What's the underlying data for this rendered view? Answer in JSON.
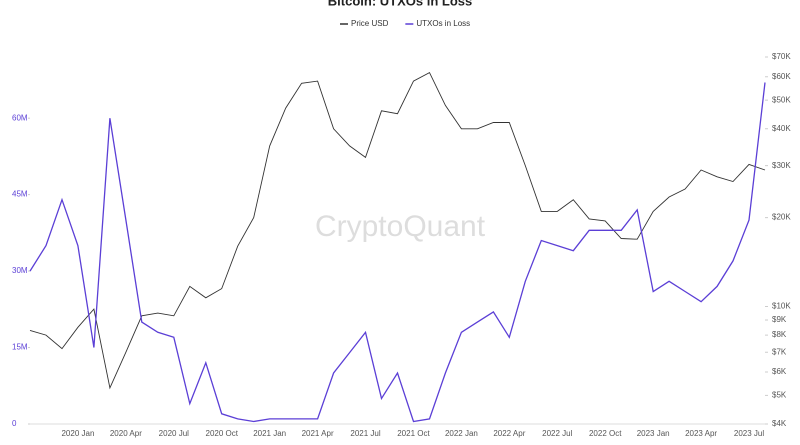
{
  "chart_data": {
    "type": "line",
    "title": "Bitcoin: UTXOs in Loss",
    "watermark": "CryptoQuant",
    "categories": [
      null,
      null,
      null,
      "2020 Jan",
      null,
      null,
      "2020 Apr",
      null,
      null,
      "2020 Jul",
      null,
      null,
      "2020 Oct",
      null,
      null,
      "2021 Jan",
      null,
      null,
      "2021 Apr",
      null,
      null,
      "2021 Jul",
      null,
      null,
      "2021 Oct",
      null,
      null,
      "2022 Jan",
      null,
      null,
      "2022 Apr",
      null,
      null,
      "2022 Jul",
      null,
      null,
      "2022 Oct",
      null,
      null,
      "2023 Jan",
      null,
      null,
      "2023 Apr",
      null,
      null,
      "2023 Jul",
      null
    ],
    "series": [
      {
        "name": "Price USD",
        "color": "#333333",
        "axis": "y2",
        "values": [
          8300,
          8000,
          7200,
          8500,
          9800,
          5300,
          7000,
          9300,
          9500,
          9300,
          11700,
          10700,
          11500,
          16000,
          20000,
          35000,
          47000,
          57000,
          58000,
          40000,
          35000,
          32000,
          46000,
          45000,
          58000,
          62000,
          48000,
          40000,
          40000,
          42000,
          42000,
          30000,
          21000,
          21000,
          23000,
          19800,
          19500,
          17000,
          16900,
          21000,
          23500,
          25000,
          29000,
          27500,
          26500,
          30300,
          29000
        ]
      },
      {
        "name": "UTXOs in Loss",
        "color": "#5b3fd6",
        "values": [
          30000000,
          35000000,
          44000000,
          35000000,
          15000000,
          60000000,
          40000000,
          20000000,
          18000000,
          17000000,
          4000000,
          12000000,
          2000000,
          1000000,
          500000,
          1000000,
          1000000,
          1000000,
          1000000,
          10000000,
          14000000,
          18000000,
          5000000,
          10000000,
          500000,
          1000000,
          10000000,
          18000000,
          20000000,
          22000000,
          17000000,
          28000000,
          36000000,
          35000000,
          34000000,
          38000000,
          38000000,
          38000000,
          42000000,
          26000000,
          28000000,
          26000000,
          24000000,
          27000000,
          32000000,
          40000000,
          67000000
        ]
      }
    ],
    "ylim": [
      0,
      72000000
    ],
    "yticks": [
      0,
      {
        "value": 15000000,
        "label": "15M"
      },
      {
        "value": 30000000,
        "label": "30M"
      },
      {
        "value": 45000000,
        "label": "45M"
      },
      {
        "value": 60000000,
        "label": "60M"
      }
    ],
    "y2lim": [
      4000,
      70000
    ],
    "y2log": true,
    "y2ticks": [
      {
        "value": 4000,
        "label": "$4K"
      },
      {
        "value": 5000,
        "label": "$5K"
      },
      {
        "value": 6000,
        "label": "$6K"
      },
      {
        "value": 7000,
        "label": "$7K"
      },
      {
        "value": 8000,
        "label": "$8K"
      },
      {
        "value": 9000,
        "label": "$9K"
      },
      {
        "value": 10000,
        "label": "$10K"
      },
      {
        "value": 20000,
        "label": "$20K"
      },
      {
        "value": 30000,
        "label": "$30K"
      },
      {
        "value": 40000,
        "label": "$40K"
      },
      {
        "value": 50000,
        "label": "$50K"
      },
      {
        "value": 60000,
        "label": "$60K"
      },
      {
        "value": 70000,
        "label": "$70K"
      }
    ],
    "legend": "top"
  }
}
